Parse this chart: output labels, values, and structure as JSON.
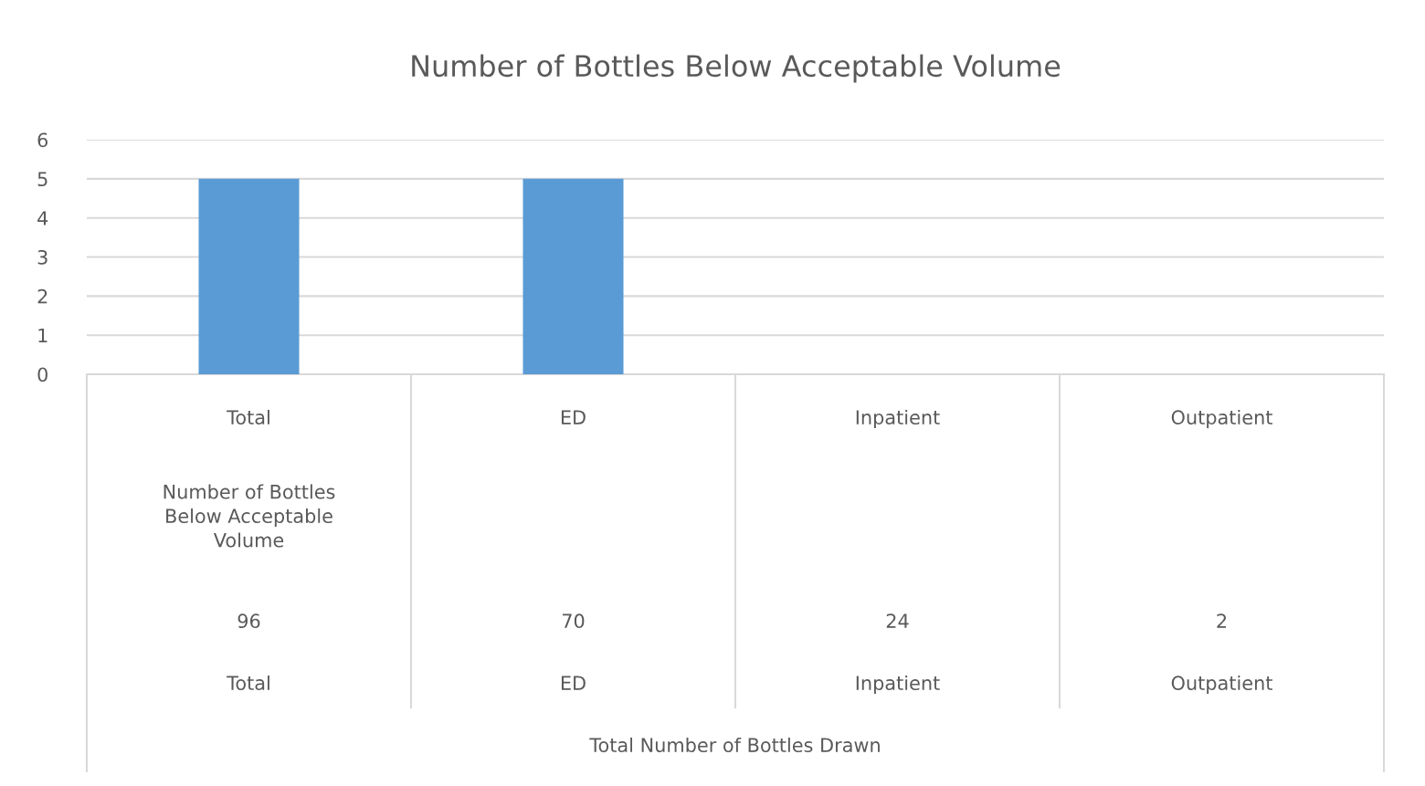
{
  "chart_data": {
    "type": "bar",
    "title": "Number of Bottles Below Acceptable Volume",
    "categories": [
      "Total",
      "ED",
      "Inpatient",
      "Outpatient"
    ],
    "values": [
      5,
      5,
      0,
      0
    ],
    "color": "#5b9bd5",
    "ylim": [
      0,
      6
    ],
    "yticks": [
      0,
      1,
      2,
      3,
      4,
      5,
      6
    ],
    "grid": "y",
    "legend": false,
    "annotations": [
      "Number of Bottles Below Acceptable Volume",
      "96",
      "70",
      "24",
      "2",
      "Total",
      "ED",
      "Inpatient",
      "Outpatient",
      "Total Number of Bottles Drawn"
    ]
  }
}
